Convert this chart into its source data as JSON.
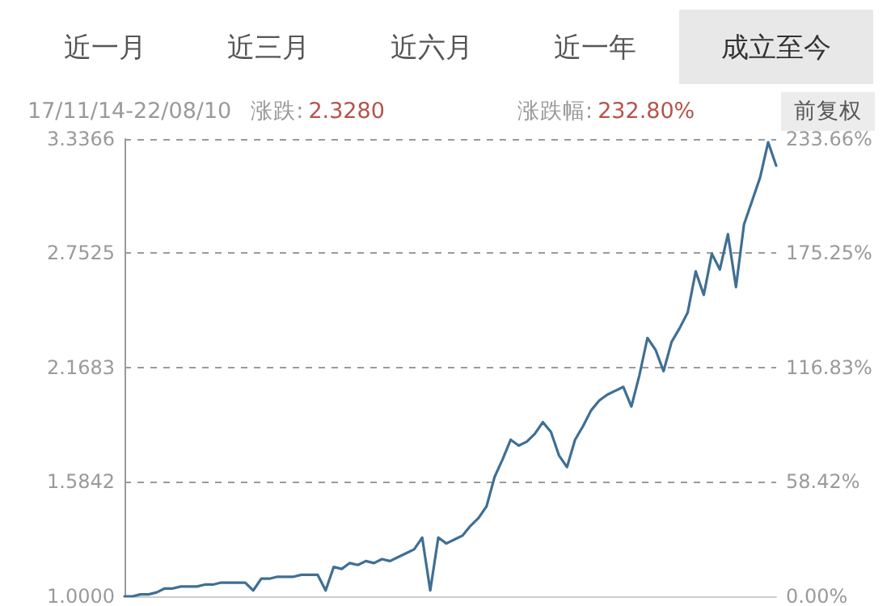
{
  "chart_data": {
    "type": "line",
    "annotations": [
      "近一月",
      "近三月",
      "近六月",
      "近一年",
      "成立至今",
      "17/11/14-22/08/10",
      "涨跌:",
      "2.3280",
      "涨跌幅:",
      "232.80%",
      "前复权"
    ],
    "categories": [
      null,
      null,
      null,
      null,
      null,
      null,
      null,
      null,
      null,
      null,
      null,
      null,
      null,
      null,
      null,
      null,
      null,
      null,
      null,
      null,
      null,
      null,
      null,
      null,
      null,
      null,
      null,
      null,
      null,
      null,
      null,
      null,
      null,
      null,
      null,
      null,
      null,
      null,
      null,
      null,
      null,
      null,
      null,
      null,
      null,
      null,
      null,
      null,
      null,
      null,
      null,
      null,
      null,
      null,
      null,
      null,
      null,
      null,
      null,
      null,
      null,
      null,
      null,
      null,
      null,
      null,
      null,
      null,
      null,
      null,
      null,
      null,
      null,
      null,
      null,
      null,
      null,
      null,
      null,
      null,
      null,
      null
    ],
    "series": [
      {
        "color": "#3f6f94",
        "values": [
          1.0,
          1.0,
          1.01,
          1.01,
          1.02,
          1.04,
          1.04,
          1.05,
          1.05,
          1.05,
          1.06,
          1.06,
          1.07,
          1.07,
          1.07,
          1.07,
          1.03,
          1.09,
          1.09,
          1.1,
          1.1,
          1.1,
          1.11,
          1.11,
          1.11,
          1.03,
          1.15,
          1.14,
          1.17,
          1.16,
          1.18,
          1.17,
          1.19,
          1.18,
          1.2,
          1.22,
          1.24,
          1.3,
          1.03,
          1.3,
          1.27,
          1.29,
          1.31,
          1.36,
          1.4,
          1.46,
          1.61,
          1.7,
          1.8,
          1.77,
          1.79,
          1.83,
          1.89,
          1.84,
          1.72,
          1.66,
          1.8,
          1.87,
          1.95,
          2.0,
          2.03,
          2.05,
          2.07,
          1.97,
          2.13,
          2.32,
          2.26,
          2.15,
          2.3,
          2.37,
          2.45,
          2.66,
          2.54,
          2.75,
          2.67,
          2.85,
          2.58,
          2.9,
          3.02,
          3.14,
          3.32,
          3.2
        ]
      }
    ],
    "ylim": [
      1.0,
      3.3366
    ],
    "yticks": [
      {
        "value": 1.0,
        "label": "1.0000"
      },
      1.5842,
      2.1683,
      2.7525,
      3.3366
    ],
    "y2lim": [
      0,
      233.66
    ],
    "y2ticks": [
      {
        "value": 0,
        "label": "0.00%"
      },
      {
        "value": 58.42,
        "label": "58.42%"
      },
      {
        "value": 116.83,
        "label": "116.83%"
      },
      {
        "value": 175.25,
        "label": "175.25%"
      },
      {
        "value": 233.66,
        "label": "233.66%"
      }
    ],
    "tick_labels": "y",
    "grid": "y",
    "line_style": "solid"
  }
}
